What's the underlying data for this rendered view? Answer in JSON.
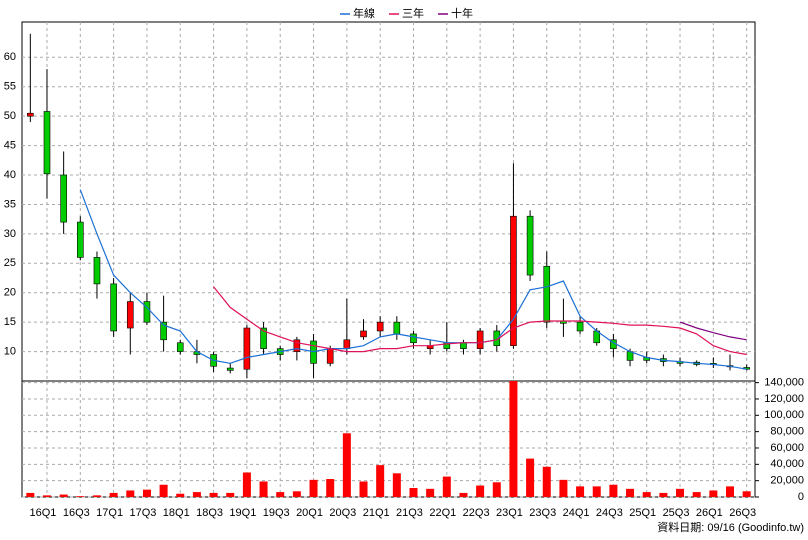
{
  "chart_data": {
    "type": "candlestick",
    "categories": [
      null,
      "16Q1",
      null,
      "16Q3",
      null,
      "17Q1",
      null,
      "17Q3",
      null,
      "18Q1",
      null,
      "18Q3",
      null,
      "19Q1",
      null,
      "19Q3",
      null,
      "20Q1",
      null,
      "20Q3",
      null,
      "21Q1",
      null,
      "21Q3",
      null,
      "22Q1",
      null,
      "22Q3",
      null,
      "23Q1",
      null,
      "23Q3",
      null,
      "24Q1",
      null,
      "24Q3",
      null,
      "25Q1",
      null,
      "25Q3",
      null,
      "26Q1",
      null,
      "26Q3"
    ],
    "open": [
      50,
      50.8,
      40,
      32,
      26,
      21.5,
      14,
      18.5,
      15,
      11.5,
      10,
      9.5,
      7.2,
      7,
      14,
      10.5,
      10,
      11.8,
      8,
      10.5,
      12.5,
      13.5,
      15,
      13,
      10.5,
      11.5,
      11.5,
      10.5,
      13.5,
      11,
      33,
      24.5,
      15.2,
      15,
      13.5,
      12,
      10,
      9,
      8.8,
      8.3,
      8.2,
      8,
      7.6,
      7.3
    ],
    "high": [
      64,
      58,
      44,
      33,
      27,
      22.5,
      20,
      20,
      19.5,
      12,
      12,
      10,
      8,
      14.5,
      15,
      11,
      12.5,
      13,
      11,
      19,
      15.5,
      16,
      16,
      13.5,
      12,
      15,
      12,
      14,
      14.5,
      42,
      34,
      27,
      19,
      16,
      14,
      13,
      10.5,
      10,
      9.5,
      9,
      8.5,
      9,
      9.5,
      7.8
    ],
    "low": [
      49,
      36,
      30,
      25.5,
      19,
      12.5,
      9.5,
      14.5,
      10,
      9.5,
      8,
      6.5,
      6.3,
      5.5,
      9.5,
      8.5,
      8.5,
      5.5,
      7.5,
      9.5,
      12,
      12.5,
      12,
      10.5,
      9.5,
      10,
      9.5,
      9.5,
      10,
      10.5,
      22,
      14,
      12.5,
      13,
      11,
      9,
      7.5,
      8,
      7.5,
      7.5,
      7.5,
      7.2,
      6.8,
      6.8
    ],
    "close": [
      50.5,
      40.2,
      32,
      26,
      21.5,
      13.5,
      18.5,
      15,
      12,
      10,
      9.5,
      7.5,
      6.8,
      14,
      10.5,
      9.5,
      12,
      8,
      10.5,
      12,
      13.5,
      15,
      13,
      11.5,
      11,
      10.5,
      10.5,
      13.5,
      11,
      33,
      23,
      15,
      14.8,
      13.5,
      11.5,
      10.5,
      8.5,
      8.5,
      8.3,
      8,
      7.8,
      7.8,
      7.4,
      7
    ],
    "up_color": "#ff0000",
    "down_color": "#00cc00",
    "series": [
      {
        "name": "年線",
        "color": "#1c6fd6",
        "values": [
          null,
          null,
          null,
          37.5,
          30,
          23,
          20,
          17.5,
          14.5,
          13.5,
          10,
          8.5,
          8,
          9,
          9.5,
          10,
          10.5,
          10,
          10.5,
          10.5,
          11,
          12.5,
          13,
          12.5,
          12,
          11.5,
          11.5,
          11.5,
          12,
          15.5,
          20.5,
          21,
          22,
          16,
          13.5,
          11.5,
          10,
          9,
          8.5,
          8.3,
          8,
          7.8,
          7.5,
          7
        ]
      },
      {
        "name": "三年",
        "color": "#e0105a",
        "values": [
          null,
          null,
          null,
          null,
          null,
          null,
          null,
          null,
          null,
          null,
          null,
          21,
          17.5,
          15.5,
          13.5,
          12.5,
          11.5,
          11,
          10.5,
          10,
          10,
          10.5,
          10.5,
          11,
          11,
          11.3,
          11.5,
          11.5,
          12,
          14,
          15,
          15.2,
          15.2,
          15.2,
          15,
          14.8,
          14.5,
          14.5,
          14.3,
          14,
          13,
          11,
          10,
          9.5
        ]
      },
      {
        "name": "十年",
        "color": "#800080",
        "values": [
          null,
          null,
          null,
          null,
          null,
          null,
          null,
          null,
          null,
          null,
          null,
          null,
          null,
          null,
          null,
          null,
          null,
          null,
          null,
          null,
          null,
          null,
          null,
          null,
          null,
          null,
          null,
          null,
          null,
          null,
          null,
          null,
          null,
          null,
          null,
          null,
          null,
          null,
          null,
          15,
          14,
          13.2,
          12.5,
          12
        ]
      }
    ],
    "ylim": [
      5,
      66
    ],
    "yticks": [
      10,
      15,
      20,
      25,
      30,
      35,
      40,
      45,
      50,
      55,
      60
    ],
    "grid": true,
    "volume": {
      "color": "#ff0000",
      "values": [
        5000,
        2000,
        3000,
        1000,
        2000,
        5000,
        8000,
        9000,
        15000,
        4000,
        6000,
        5000,
        5000,
        30000,
        19000,
        6000,
        7000,
        21000,
        22000,
        78000,
        19000,
        39000,
        29000,
        11000,
        10000,
        25000,
        5000,
        14000,
        18000,
        142000,
        47000,
        37000,
        21000,
        13000,
        13000,
        15000,
        10000,
        6000,
        5000,
        10000,
        6000,
        8000,
        13000,
        7000
      ],
      "ylim": [
        0,
        142000
      ],
      "yticks": [
        0,
        {
          "value": 20000,
          "label": "20,000"
        },
        {
          "value": 40000,
          "label": "40,000"
        },
        {
          "value": 60000,
          "label": "60,000"
        },
        {
          "value": 80000,
          "label": "80,000"
        },
        {
          "value": 100000,
          "label": "100,000"
        },
        {
          "value": 120000,
          "label": "120,000"
        },
        {
          "value": 140000,
          "label": "140,000"
        }
      ]
    },
    "note": "資料日期: 09/16 (Goodinfo.tw)"
  }
}
